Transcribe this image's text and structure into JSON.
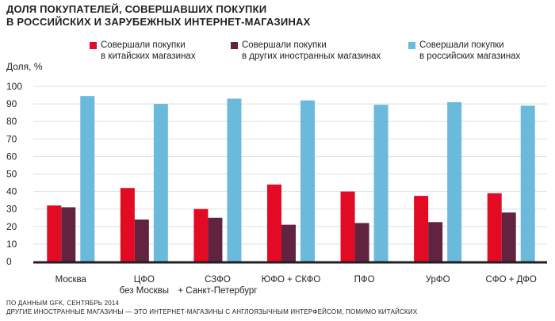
{
  "chart_data": {
    "type": "bar",
    "title": [
      "ДОЛЯ ПОКУПАТЕЛЕЙ, СОВЕРШАВШИХ ПОКУПКИ",
      "В РОССИЙСКИХ И ЗАРУБЕЖНЫХ ИНТЕРНЕТ-МАГАЗИНАХ"
    ],
    "ylabel": "Доля, %",
    "ylim": [
      0,
      100
    ],
    "yticks": [
      0,
      10,
      20,
      30,
      40,
      50,
      60,
      70,
      80,
      90,
      100
    ],
    "grid": true,
    "legend_placement": "top",
    "categories": [
      [
        "Москва"
      ],
      [
        "ЦФО",
        "без Москвы"
      ],
      [
        "СЗФО",
        "+ Санкт-Петербург"
      ],
      [
        "ЮФО + СКФО"
      ],
      [
        "ПФО"
      ],
      [
        "УрФО"
      ],
      [
        "СФО + ДФО"
      ]
    ],
    "series": [
      {
        "name": [
          "Совершали покупки",
          "в китайских магазинах"
        ],
        "color": "#e30a24",
        "values": [
          32,
          42,
          30,
          44,
          40,
          37.5,
          39
        ]
      },
      {
        "name": [
          "Совершали покупки",
          "в других иностранных магазинах"
        ],
        "color": "#622341",
        "values": [
          31,
          24,
          25,
          21,
          22,
          22.5,
          28
        ]
      },
      {
        "name": [
          "Совершали покупки",
          "в российских магазинах"
        ],
        "color": "#6bbadc",
        "values": [
          94.5,
          90,
          93,
          92,
          89.5,
          91,
          89
        ]
      }
    ]
  },
  "footnotes": [
    "ПО ДАННЫМ GFK, СЕНТЯБРЬ 2014",
    "ДРУГИЕ ИНОСТРАННЫЕ МАГАЗИНЫ — ЭТО ИНТЕРНЕТ-МАГАЗИНЫ С АНГЛОЯЗЫЧНЫМ ИНТЕРФЕЙСОМ, ПОМИМО КИТАЙСКИХ"
  ]
}
